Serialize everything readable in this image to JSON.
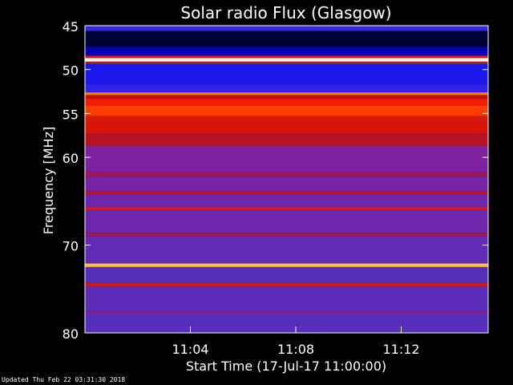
{
  "chart_data": {
    "type": "heatmap",
    "title": "Solar radio Flux (Glasgow)",
    "xlabel": "Start Time (17-Jul-17 11:00:00)",
    "ylabel": "Frequency [MHz]",
    "ylim": [
      45,
      80
    ],
    "xlim_minutes": [
      0,
      15.3
    ],
    "x_ticks": [
      {
        "minutes": 4,
        "label": "11:04"
      },
      {
        "minutes": 8,
        "label": "11:08"
      },
      {
        "minutes": 12,
        "label": "11:12"
      }
    ],
    "y_ticks": [
      {
        "value": 45,
        "label": "45"
      },
      {
        "value": 50,
        "label": "50"
      },
      {
        "value": 55,
        "label": "55"
      },
      {
        "value": 60,
        "label": "60"
      },
      {
        "value": 70,
        "label": "70"
      },
      {
        "value": 80,
        "label": "80"
      }
    ],
    "colorscale": [
      "#000010",
      "#0000a0",
      "#2020ff",
      "#5030c0",
      "#8020a0",
      "#c01010",
      "#ff2000",
      "#ff8000",
      "#ffe060",
      "#ffffff"
    ],
    "bands": [
      {
        "from": 45.0,
        "to": 45.6,
        "level": 0.28
      },
      {
        "from": 45.6,
        "to": 47.4,
        "level": 0.03
      },
      {
        "from": 47.4,
        "to": 48.4,
        "level": 0.12
      },
      {
        "from": 48.4,
        "to": 48.7,
        "level": 0.6
      },
      {
        "from": 48.7,
        "to": 49.1,
        "level": 1.0
      },
      {
        "from": 49.1,
        "to": 49.4,
        "level": 0.55
      },
      {
        "from": 49.4,
        "to": 51.7,
        "level": 0.2
      },
      {
        "from": 51.7,
        "to": 52.6,
        "level": 0.26
      },
      {
        "from": 52.6,
        "to": 52.9,
        "level": 0.78
      },
      {
        "from": 52.9,
        "to": 53.3,
        "level": 0.55
      },
      {
        "from": 53.3,
        "to": 54.1,
        "level": 0.64
      },
      {
        "from": 54.1,
        "to": 55.3,
        "level": 0.7
      },
      {
        "from": 55.3,
        "to": 57.3,
        "level": 0.6
      },
      {
        "from": 57.3,
        "to": 58.7,
        "level": 0.54
      },
      {
        "from": 58.7,
        "to": 61.7,
        "level": 0.44
      },
      {
        "from": 61.7,
        "to": 62.2,
        "level": 0.5
      },
      {
        "from": 62.2,
        "to": 63.9,
        "level": 0.42
      },
      {
        "from": 63.9,
        "to": 64.2,
        "level": 0.56
      },
      {
        "from": 64.2,
        "to": 65.7,
        "level": 0.4
      },
      {
        "from": 65.7,
        "to": 66.0,
        "level": 0.62
      },
      {
        "from": 66.0,
        "to": 68.6,
        "level": 0.4
      },
      {
        "from": 68.6,
        "to": 69.0,
        "level": 0.5
      },
      {
        "from": 69.0,
        "to": 72.1,
        "level": 0.37
      },
      {
        "from": 72.1,
        "to": 72.5,
        "level": 0.85
      },
      {
        "from": 72.5,
        "to": 74.3,
        "level": 0.35
      },
      {
        "from": 74.3,
        "to": 74.7,
        "level": 0.6
      },
      {
        "from": 74.7,
        "to": 77.6,
        "level": 0.36
      },
      {
        "from": 77.6,
        "to": 77.9,
        "level": 0.46
      },
      {
        "from": 77.9,
        "to": 80.0,
        "level": 0.35
      }
    ]
  },
  "footer": {
    "updated": "Updated Thu Feb 22 03:31:30 2018"
  }
}
